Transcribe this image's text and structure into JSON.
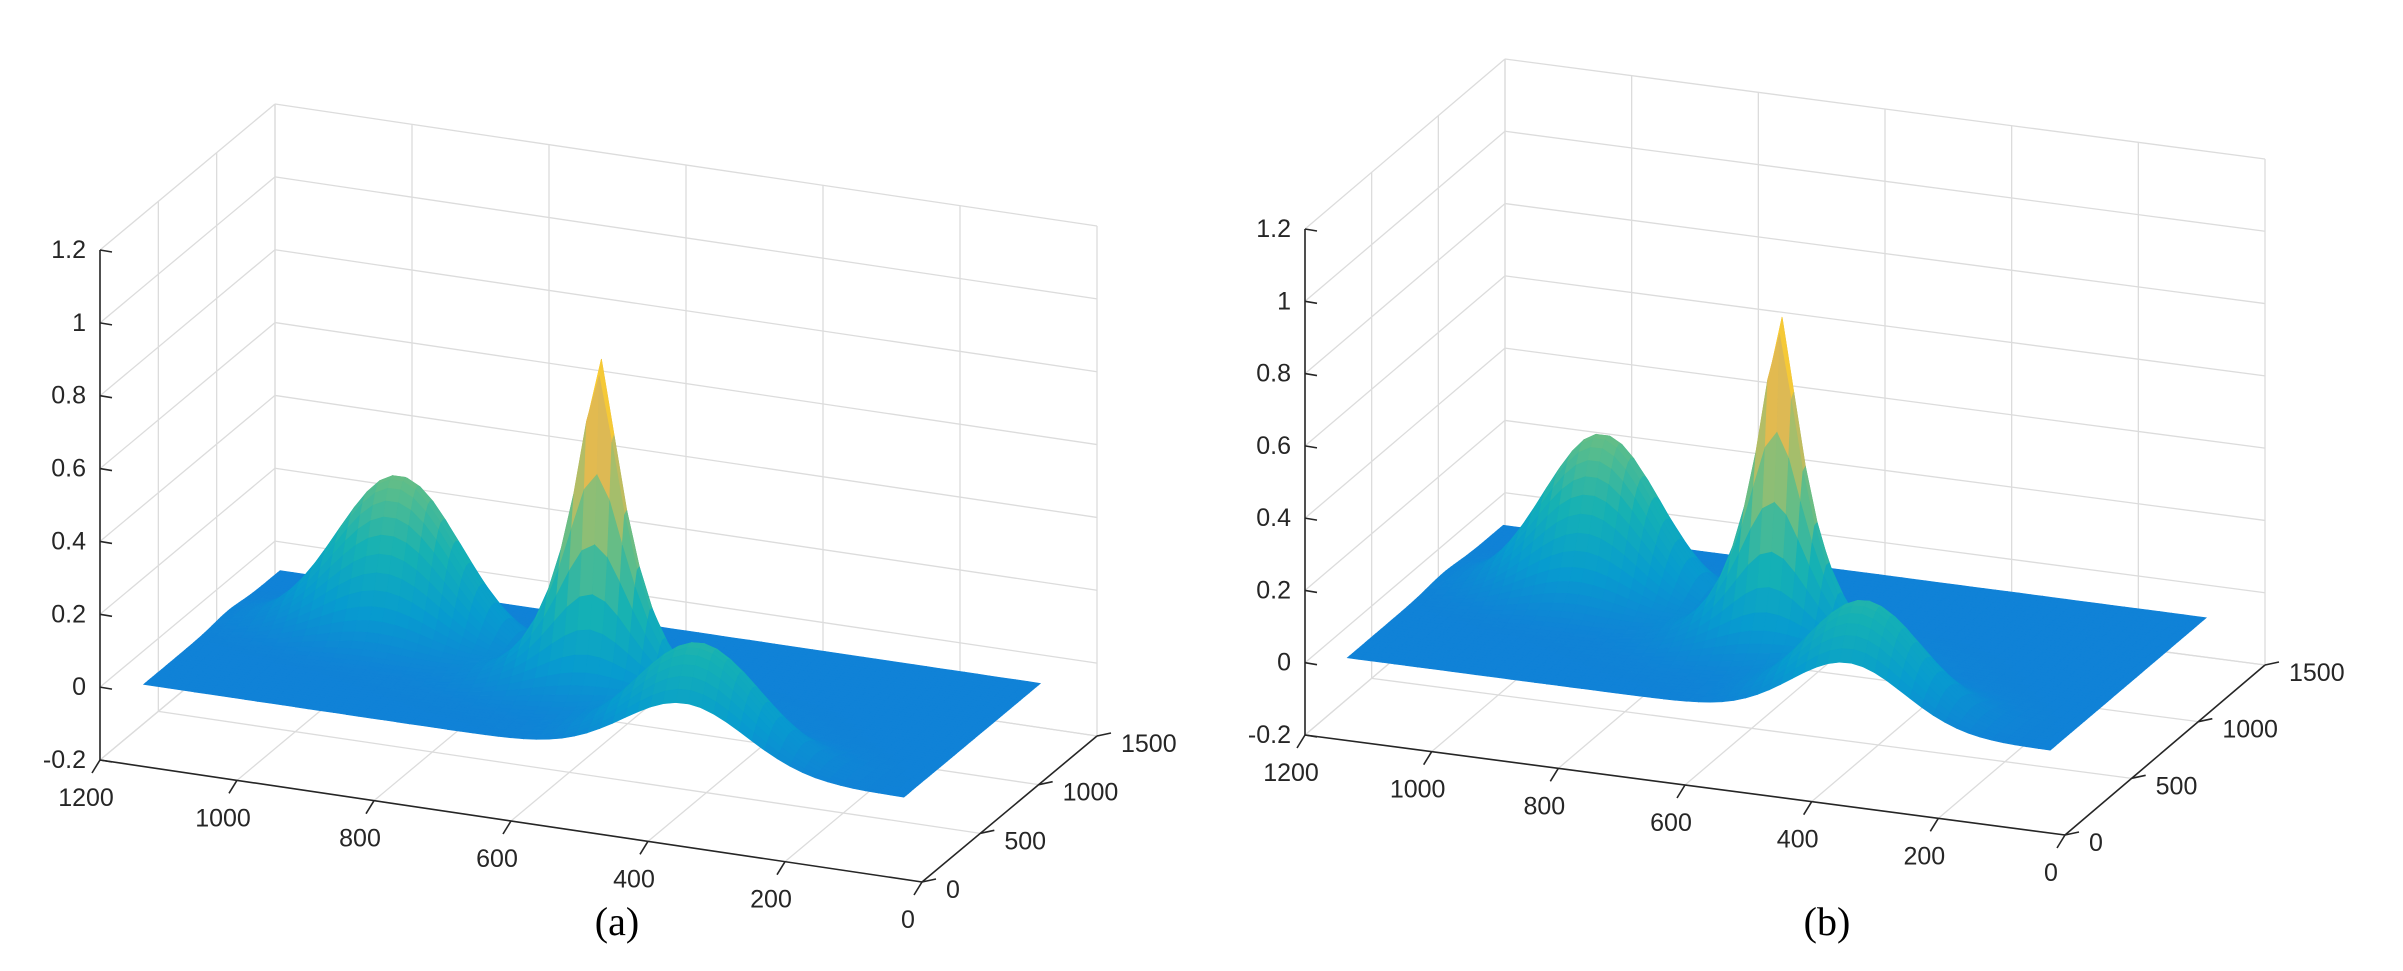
{
  "chart_data": [
    {
      "panel": "a",
      "type": "surface",
      "caption": "(a)",
      "x_ticks": [
        0,
        200,
        400,
        600,
        800,
        1000,
        1200
      ],
      "y_ticks": [
        0,
        500,
        1000,
        1500
      ],
      "z_ticks": [
        -0.2,
        0,
        0.2,
        0.4,
        0.6,
        0.8,
        1,
        1.2
      ],
      "xlim": [
        0,
        1200
      ],
      "ylim": [
        0,
        1500
      ],
      "zlim": [
        -0.2,
        1.2
      ],
      "grid": true,
      "colormap": "parula",
      "surface": {
        "base_level": 0,
        "peaks": [
          {
            "x": 560,
            "y": 520,
            "z": 1.1,
            "type": "sharp"
          },
          {
            "x": 900,
            "y": 800,
            "z": 0.45,
            "type": "mound"
          },
          {
            "x": 360,
            "y": 200,
            "z": 0.3,
            "type": "mound"
          }
        ]
      }
    },
    {
      "panel": "b",
      "type": "surface",
      "caption": "(b)",
      "x_ticks": [
        0,
        200,
        400,
        600,
        800,
        1000,
        1200
      ],
      "y_ticks": [
        0,
        500,
        1000,
        1500
      ],
      "z_ticks": [
        -0.2,
        0,
        0.2,
        0.4,
        0.6,
        0.8,
        1,
        1.2
      ],
      "xlim": [
        0,
        1200
      ],
      "ylim": [
        0,
        1500
      ],
      "zlim": [
        -0.2,
        1.2
      ],
      "grid": true,
      "colormap": "parula",
      "surface": {
        "base_level": 0,
        "peaks": [
          {
            "x": 560,
            "y": 520,
            "z": 1.1,
            "type": "sharp"
          },
          {
            "x": 900,
            "y": 800,
            "z": 0.45,
            "type": "mound"
          },
          {
            "x": 360,
            "y": 200,
            "z": 0.3,
            "type": "mound"
          }
        ]
      }
    }
  ]
}
